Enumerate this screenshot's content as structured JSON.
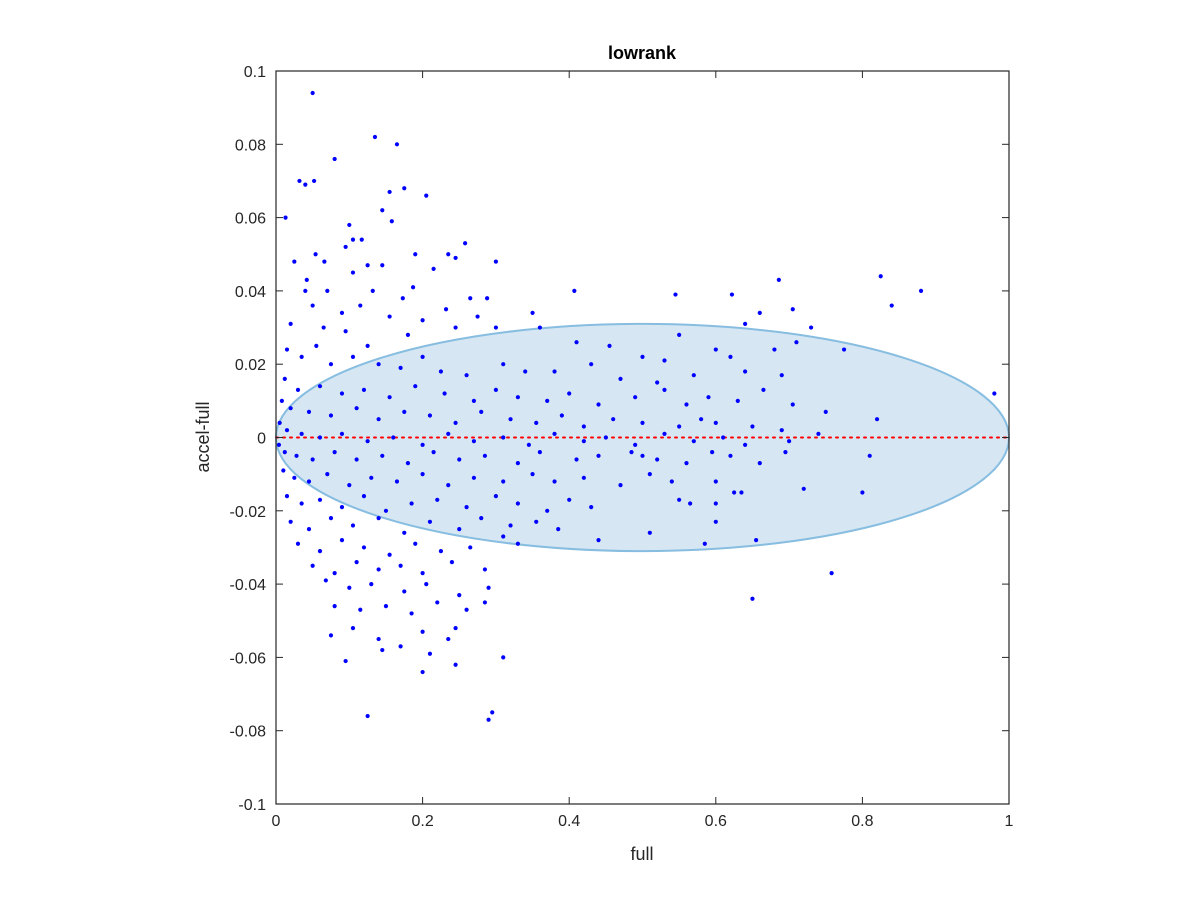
{
  "chart_data": {
    "type": "scatter",
    "title": "lowrank",
    "xlabel": "full",
    "ylabel": "accel-full",
    "xlim": [
      0,
      1
    ],
    "ylim": [
      -0.1,
      0.1
    ],
    "xticks": [
      0,
      0.2,
      0.4,
      0.6,
      0.8,
      1
    ],
    "xtick_labels": [
      "0",
      "0.2",
      "0.4",
      "0.6",
      "0.8",
      "1"
    ],
    "yticks": [
      -0.1,
      -0.08,
      -0.06,
      -0.04,
      -0.02,
      0,
      0.02,
      0.04,
      0.06,
      0.08,
      0.1
    ],
    "ytick_labels": [
      "-0.1",
      "-0.08",
      "-0.06",
      "-0.04",
      "-0.02",
      "0",
      "0.02",
      "0.04",
      "0.06",
      "0.08",
      "0.1"
    ],
    "grid": false,
    "marker_color": "#0000ff",
    "zero_line": {
      "y": 0,
      "color": "#ff0000",
      "style": "dotted"
    },
    "ellipse": {
      "cx": 0.5,
      "cy": 0,
      "rx": 0.5,
      "ry": 0.031,
      "fill": "#d6e7f3",
      "stroke": "#87bde0"
    },
    "points": [
      [
        0.05,
        0.094
      ],
      [
        0.135,
        0.082
      ],
      [
        0.165,
        0.08
      ],
      [
        0.08,
        0.076
      ],
      [
        0.032,
        0.07
      ],
      [
        0.052,
        0.07
      ],
      [
        0.04,
        0.069
      ],
      [
        0.175,
        0.068
      ],
      [
        0.155,
        0.067
      ],
      [
        0.205,
        0.066
      ],
      [
        0.145,
        0.062
      ],
      [
        0.158,
        0.059
      ],
      [
        0.013,
        0.06
      ],
      [
        0.1,
        0.058
      ],
      [
        0.105,
        0.054
      ],
      [
        0.117,
        0.054
      ],
      [
        0.258,
        0.053
      ],
      [
        0.095,
        0.052
      ],
      [
        0.19,
        0.05
      ],
      [
        0.054,
        0.05
      ],
      [
        0.235,
        0.05
      ],
      [
        0.3,
        0.048
      ],
      [
        0.125,
        0.047
      ],
      [
        0.145,
        0.047
      ],
      [
        0.245,
        0.049
      ],
      [
        0.025,
        0.048
      ],
      [
        0.066,
        0.048
      ],
      [
        0.042,
        0.043
      ],
      [
        0.105,
        0.045
      ],
      [
        0.215,
        0.046
      ],
      [
        0.04,
        0.04
      ],
      [
        0.07,
        0.04
      ],
      [
        0.132,
        0.04
      ],
      [
        0.187,
        0.041
      ],
      [
        0.173,
        0.038
      ],
      [
        0.265,
        0.038
      ],
      [
        0.232,
        0.035
      ],
      [
        0.407,
        0.04
      ],
      [
        0.545,
        0.039
      ],
      [
        0.622,
        0.039
      ],
      [
        0.686,
        0.043
      ],
      [
        0.825,
        0.044
      ],
      [
        0.88,
        0.04
      ],
      [
        0.84,
        0.036
      ],
      [
        0.288,
        0.038
      ],
      [
        0.275,
        0.033
      ],
      [
        0.155,
        0.033
      ],
      [
        0.35,
        0.034
      ],
      [
        0.2,
        0.032
      ],
      [
        0.05,
        0.036
      ],
      [
        0.09,
        0.034
      ],
      [
        0.115,
        0.036
      ],
      [
        0.02,
        0.031
      ],
      [
        0.065,
        0.03
      ],
      [
        0.095,
        0.029
      ],
      [
        0.125,
        0.025
      ],
      [
        0.245,
        0.03
      ],
      [
        0.18,
        0.028
      ],
      [
        0.3,
        0.03
      ],
      [
        0.64,
        0.031
      ],
      [
        0.66,
        0.034
      ],
      [
        0.705,
        0.035
      ],
      [
        0.73,
        0.03
      ],
      [
        0.36,
        0.03
      ],
      [
        0.41,
        0.026
      ],
      [
        0.455,
        0.025
      ],
      [
        0.5,
        0.022
      ],
      [
        0.53,
        0.021
      ],
      [
        0.55,
        0.028
      ],
      [
        0.6,
        0.024
      ],
      [
        0.62,
        0.022
      ],
      [
        0.68,
        0.024
      ],
      [
        0.71,
        0.026
      ],
      [
        0.775,
        0.024
      ],
      [
        0.015,
        0.024
      ],
      [
        0.035,
        0.022
      ],
      [
        0.055,
        0.025
      ],
      [
        0.075,
        0.02
      ],
      [
        0.105,
        0.022
      ],
      [
        0.14,
        0.02
      ],
      [
        0.17,
        0.019
      ],
      [
        0.2,
        0.022
      ],
      [
        0.225,
        0.018
      ],
      [
        0.26,
        0.017
      ],
      [
        0.31,
        0.02
      ],
      [
        0.34,
        0.018
      ],
      [
        0.38,
        0.018
      ],
      [
        0.43,
        0.02
      ],
      [
        0.47,
        0.016
      ],
      [
        0.52,
        0.015
      ],
      [
        0.57,
        0.017
      ],
      [
        0.64,
        0.018
      ],
      [
        0.69,
        0.017
      ],
      [
        0.98,
        0.012
      ],
      [
        0.012,
        0.016
      ],
      [
        0.03,
        0.013
      ],
      [
        0.06,
        0.014
      ],
      [
        0.09,
        0.012
      ],
      [
        0.12,
        0.013
      ],
      [
        0.155,
        0.011
      ],
      [
        0.19,
        0.014
      ],
      [
        0.23,
        0.012
      ],
      [
        0.27,
        0.01
      ],
      [
        0.3,
        0.013
      ],
      [
        0.33,
        0.011
      ],
      [
        0.37,
        0.01
      ],
      [
        0.4,
        0.012
      ],
      [
        0.44,
        0.009
      ],
      [
        0.49,
        0.011
      ],
      [
        0.53,
        0.013
      ],
      [
        0.56,
        0.009
      ],
      [
        0.59,
        0.011
      ],
      [
        0.63,
        0.01
      ],
      [
        0.665,
        0.013
      ],
      [
        0.705,
        0.009
      ],
      [
        0.75,
        0.007
      ],
      [
        0.008,
        0.01
      ],
      [
        0.02,
        0.008
      ],
      [
        0.045,
        0.007
      ],
      [
        0.075,
        0.006
      ],
      [
        0.11,
        0.008
      ],
      [
        0.14,
        0.005
      ],
      [
        0.175,
        0.007
      ],
      [
        0.21,
        0.006
      ],
      [
        0.245,
        0.004
      ],
      [
        0.28,
        0.007
      ],
      [
        0.32,
        0.005
      ],
      [
        0.355,
        0.004
      ],
      [
        0.39,
        0.006
      ],
      [
        0.42,
        0.003
      ],
      [
        0.46,
        0.005
      ],
      [
        0.5,
        0.004
      ],
      [
        0.55,
        0.003
      ],
      [
        0.58,
        0.005
      ],
      [
        0.6,
        0.004
      ],
      [
        0.65,
        0.003
      ],
      [
        0.69,
        0.002
      ],
      [
        0.74,
        0.001
      ],
      [
        0.82,
        0.005
      ],
      [
        0.005,
        0.004
      ],
      [
        0.015,
        0.002
      ],
      [
        0.035,
        0.001
      ],
      [
        0.06,
        0.0
      ],
      [
        0.09,
        0.001
      ],
      [
        0.125,
        -0.001
      ],
      [
        0.16,
        0.0
      ],
      [
        0.2,
        -0.002
      ],
      [
        0.235,
        0.001
      ],
      [
        0.27,
        -0.001
      ],
      [
        0.31,
        0.0
      ],
      [
        0.345,
        -0.002
      ],
      [
        0.38,
        0.001
      ],
      [
        0.42,
        -0.001
      ],
      [
        0.45,
        0.0
      ],
      [
        0.49,
        -0.002
      ],
      [
        0.53,
        0.001
      ],
      [
        0.57,
        -0.001
      ],
      [
        0.61,
        0.0
      ],
      [
        0.64,
        -0.002
      ],
      [
        0.7,
        -0.001
      ],
      [
        0.004,
        -0.002
      ],
      [
        0.012,
        -0.004
      ],
      [
        0.028,
        -0.005
      ],
      [
        0.05,
        -0.006
      ],
      [
        0.08,
        -0.004
      ],
      [
        0.11,
        -0.006
      ],
      [
        0.145,
        -0.005
      ],
      [
        0.18,
        -0.007
      ],
      [
        0.215,
        -0.004
      ],
      [
        0.25,
        -0.006
      ],
      [
        0.285,
        -0.005
      ],
      [
        0.33,
        -0.007
      ],
      [
        0.36,
        -0.004
      ],
      [
        0.41,
        -0.006
      ],
      [
        0.44,
        -0.005
      ],
      [
        0.485,
        -0.004
      ],
      [
        0.5,
        -0.005
      ],
      [
        0.52,
        -0.006
      ],
      [
        0.56,
        -0.007
      ],
      [
        0.595,
        -0.004
      ],
      [
        0.62,
        -0.005
      ],
      [
        0.66,
        -0.007
      ],
      [
        0.695,
        -0.004
      ],
      [
        0.81,
        -0.005
      ],
      [
        0.01,
        -0.009
      ],
      [
        0.025,
        -0.011
      ],
      [
        0.045,
        -0.012
      ],
      [
        0.07,
        -0.01
      ],
      [
        0.1,
        -0.013
      ],
      [
        0.13,
        -0.011
      ],
      [
        0.165,
        -0.012
      ],
      [
        0.2,
        -0.01
      ],
      [
        0.235,
        -0.013
      ],
      [
        0.27,
        -0.011
      ],
      [
        0.31,
        -0.012
      ],
      [
        0.35,
        -0.01
      ],
      [
        0.38,
        -0.012
      ],
      [
        0.42,
        -0.011
      ],
      [
        0.47,
        -0.013
      ],
      [
        0.51,
        -0.01
      ],
      [
        0.54,
        -0.012
      ],
      [
        0.6,
        -0.012
      ],
      [
        0.625,
        -0.015
      ],
      [
        0.635,
        -0.015
      ],
      [
        0.72,
        -0.014
      ],
      [
        0.8,
        -0.015
      ],
      [
        0.015,
        -0.016
      ],
      [
        0.035,
        -0.018
      ],
      [
        0.06,
        -0.017
      ],
      [
        0.09,
        -0.019
      ],
      [
        0.12,
        -0.016
      ],
      [
        0.15,
        -0.02
      ],
      [
        0.185,
        -0.018
      ],
      [
        0.22,
        -0.017
      ],
      [
        0.26,
        -0.019
      ],
      [
        0.3,
        -0.016
      ],
      [
        0.33,
        -0.018
      ],
      [
        0.37,
        -0.02
      ],
      [
        0.4,
        -0.017
      ],
      [
        0.43,
        -0.019
      ],
      [
        0.55,
        -0.017
      ],
      [
        0.565,
        -0.018
      ],
      [
        0.6,
        -0.018
      ],
      [
        0.02,
        -0.023
      ],
      [
        0.045,
        -0.025
      ],
      [
        0.075,
        -0.022
      ],
      [
        0.105,
        -0.024
      ],
      [
        0.14,
        -0.022
      ],
      [
        0.175,
        -0.026
      ],
      [
        0.21,
        -0.023
      ],
      [
        0.25,
        -0.025
      ],
      [
        0.28,
        -0.022
      ],
      [
        0.32,
        -0.024
      ],
      [
        0.355,
        -0.023
      ],
      [
        0.385,
        -0.025
      ],
      [
        0.51,
        -0.026
      ],
      [
        0.6,
        -0.023
      ],
      [
        0.655,
        -0.028
      ],
      [
        0.03,
        -0.029
      ],
      [
        0.06,
        -0.031
      ],
      [
        0.09,
        -0.028
      ],
      [
        0.12,
        -0.03
      ],
      [
        0.155,
        -0.032
      ],
      [
        0.19,
        -0.029
      ],
      [
        0.225,
        -0.031
      ],
      [
        0.265,
        -0.03
      ],
      [
        0.31,
        -0.027
      ],
      [
        0.33,
        -0.029
      ],
      [
        0.44,
        -0.028
      ],
      [
        0.585,
        -0.029
      ],
      [
        0.05,
        -0.035
      ],
      [
        0.08,
        -0.037
      ],
      [
        0.11,
        -0.034
      ],
      [
        0.14,
        -0.036
      ],
      [
        0.17,
        -0.035
      ],
      [
        0.2,
        -0.037
      ],
      [
        0.24,
        -0.034
      ],
      [
        0.285,
        -0.036
      ],
      [
        0.758,
        -0.037
      ],
      [
        0.068,
        -0.039
      ],
      [
        0.1,
        -0.041
      ],
      [
        0.13,
        -0.04
      ],
      [
        0.175,
        -0.042
      ],
      [
        0.205,
        -0.04
      ],
      [
        0.25,
        -0.043
      ],
      [
        0.29,
        -0.041
      ],
      [
        0.65,
        -0.044
      ],
      [
        0.08,
        -0.046
      ],
      [
        0.115,
        -0.047
      ],
      [
        0.15,
        -0.046
      ],
      [
        0.185,
        -0.048
      ],
      [
        0.22,
        -0.045
      ],
      [
        0.26,
        -0.047
      ],
      [
        0.285,
        -0.045
      ],
      [
        0.075,
        -0.054
      ],
      [
        0.105,
        -0.052
      ],
      [
        0.14,
        -0.055
      ],
      [
        0.17,
        -0.057
      ],
      [
        0.2,
        -0.053
      ],
      [
        0.235,
        -0.055
      ],
      [
        0.245,
        -0.052
      ],
      [
        0.095,
        -0.061
      ],
      [
        0.145,
        -0.058
      ],
      [
        0.21,
        -0.059
      ],
      [
        0.245,
        -0.062
      ],
      [
        0.31,
        -0.06
      ],
      [
        0.2,
        -0.064
      ],
      [
        0.125,
        -0.076
      ],
      [
        0.295,
        -0.075
      ],
      [
        0.29,
        -0.077
      ]
    ]
  }
}
